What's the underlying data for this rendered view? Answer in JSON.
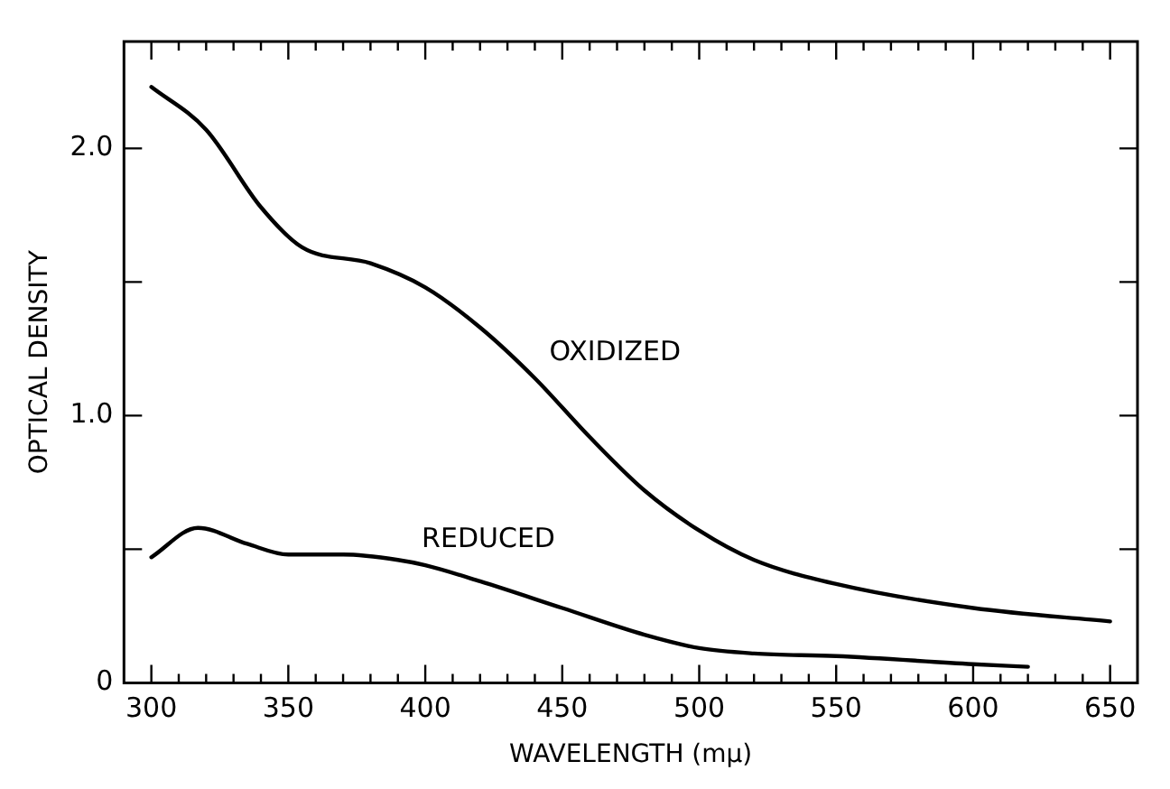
{
  "chart_data": {
    "type": "line",
    "xlabel": "WAVELENGTH (mμ)",
    "ylabel": "OPTICAL DENSITY",
    "xlim": [
      290,
      660
    ],
    "ylim": [
      0,
      2.4
    ],
    "xticks": [
      300,
      {
        "value": 310,
        "label": null
      },
      {
        "value": 320,
        "label": null
      },
      {
        "value": 330,
        "label": null
      },
      {
        "value": 340,
        "label": null
      },
      350,
      {
        "value": 360,
        "label": null
      },
      {
        "value": 370,
        "label": null
      },
      {
        "value": 380,
        "label": null
      },
      {
        "value": 390,
        "label": null
      },
      400,
      {
        "value": 410,
        "label": null
      },
      {
        "value": 420,
        "label": null
      },
      {
        "value": 430,
        "label": null
      },
      {
        "value": 440,
        "label": null
      },
      450,
      {
        "value": 460,
        "label": null
      },
      {
        "value": 470,
        "label": null
      },
      {
        "value": 480,
        "label": null
      },
      {
        "value": 490,
        "label": null
      },
      500,
      {
        "value": 510,
        "label": null
      },
      {
        "value": 520,
        "label": null
      },
      {
        "value": 530,
        "label": null
      },
      {
        "value": 540,
        "label": null
      },
      550,
      {
        "value": 560,
        "label": null
      },
      {
        "value": 570,
        "label": null
      },
      {
        "value": 580,
        "label": null
      },
      {
        "value": 590,
        "label": null
      },
      600,
      {
        "value": 610,
        "label": null
      },
      {
        "value": 620,
        "label": null
      },
      {
        "value": 630,
        "label": null
      },
      {
        "value": 640,
        "label": null
      },
      650
    ],
    "yticks": [
      0,
      {
        "value": 0.5,
        "label": null
      },
      {
        "value": 1,
        "label": "1.0"
      },
      {
        "value": 1.5,
        "label": null
      },
      {
        "value": 2,
        "label": "2.0"
      }
    ],
    "grid": false,
    "legend": false,
    "marker": "none",
    "line_style": "solid",
    "series": [
      {
        "name": "OXIDIZED",
        "color": "#000000",
        "x": [
          300,
          320,
          340,
          355,
          380,
          400,
          420,
          440,
          460,
          480,
          500,
          520,
          550,
          600,
          650
        ],
        "values": [
          2.23,
          2.07,
          1.78,
          1.63,
          1.57,
          1.48,
          1.33,
          1.14,
          0.92,
          0.72,
          0.57,
          0.46,
          0.37,
          0.28,
          0.23
        ]
      },
      {
        "name": "REDUCED",
        "color": "#000000",
        "x": [
          300,
          317,
          335,
          350,
          370,
          390,
          400,
          420,
          450,
          480,
          500,
          520,
          550,
          600,
          620
        ],
        "values": [
          0.47,
          0.58,
          0.52,
          0.48,
          0.48,
          0.46,
          0.44,
          0.38,
          0.28,
          0.18,
          0.13,
          0.11,
          0.1,
          0.07,
          0.06
        ]
      }
    ]
  }
}
